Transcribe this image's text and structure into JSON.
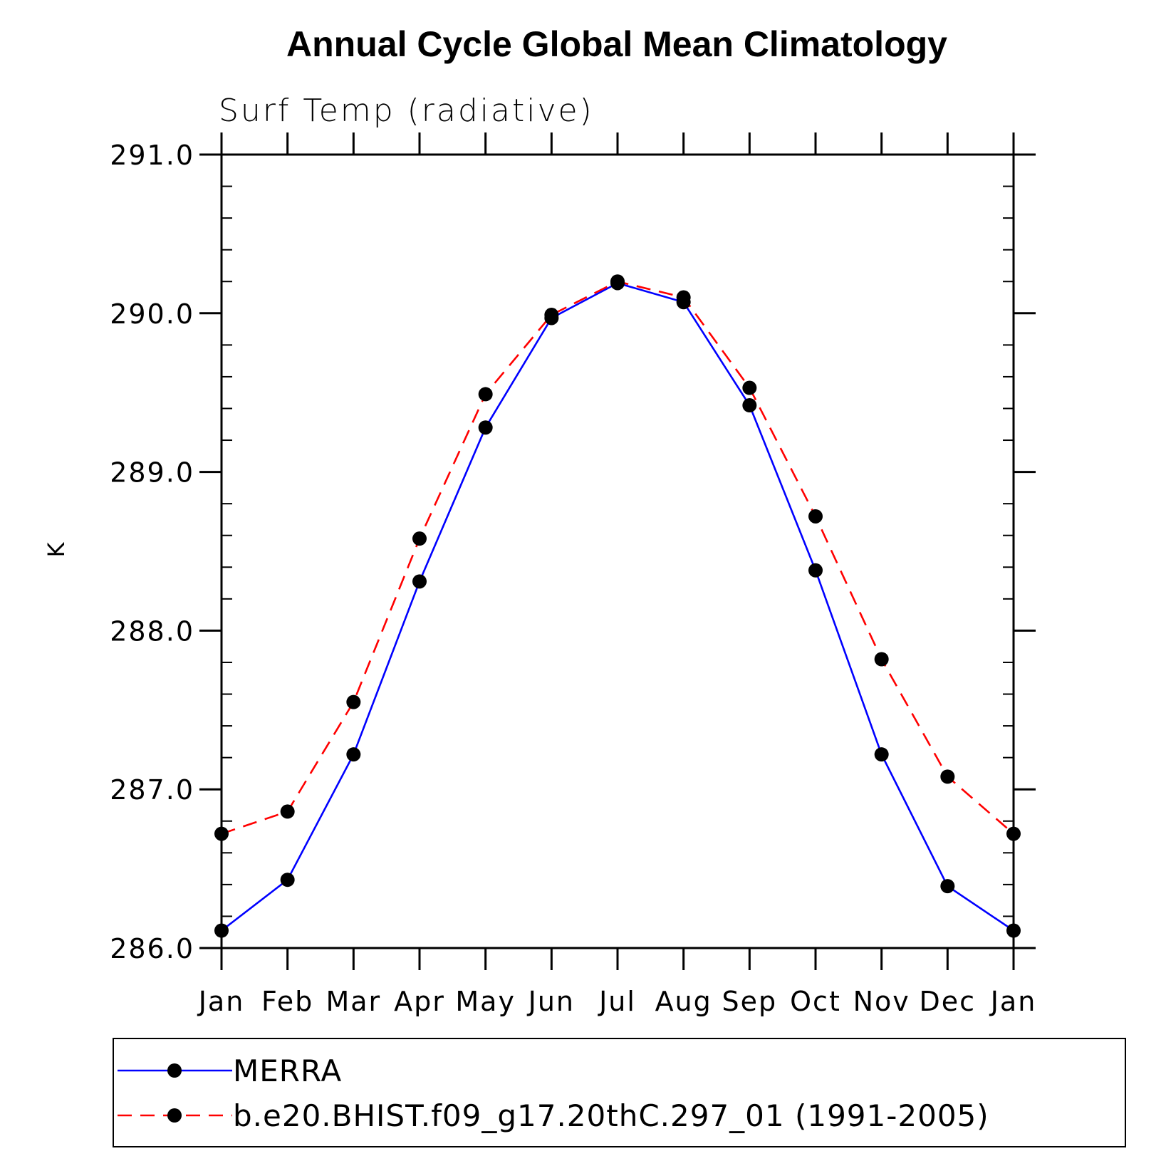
{
  "chart_data": {
    "type": "line",
    "title": "Annual Cycle Global Mean Climatology",
    "subtitle": "Surf Temp (radiative)",
    "xlabel": "",
    "ylabel": "K",
    "categories": [
      "Jan",
      "Feb",
      "Mar",
      "Apr",
      "May",
      "Jun",
      "Jul",
      "Aug",
      "Sep",
      "Oct",
      "Nov",
      "Dec",
      "Jan"
    ],
    "yticks": [
      "291.0",
      "290.0",
      "289.0",
      "288.0",
      "287.0",
      "286.0"
    ],
    "ylim": [
      286.0,
      291.0
    ],
    "grid": false,
    "legend_position": "bottom",
    "series": [
      {
        "name": "MERRA",
        "color": "#0000ff",
        "line_style": "solid",
        "marker": "filled-circle",
        "values": [
          286.11,
          286.43,
          287.22,
          288.31,
          289.28,
          289.97,
          290.19,
          290.07,
          289.42,
          288.38,
          287.22,
          286.39,
          286.11
        ]
      },
      {
        "name": "b.e20.BHIST.f09_g17.20thC.297_01 (1991-2005)",
        "color": "#ff0000",
        "line_style": "dashed",
        "marker": "filled-circle",
        "values": [
          286.72,
          286.86,
          287.55,
          288.58,
          289.49,
          289.99,
          290.2,
          290.1,
          289.53,
          288.72,
          287.82,
          287.08,
          286.72
        ]
      }
    ]
  }
}
